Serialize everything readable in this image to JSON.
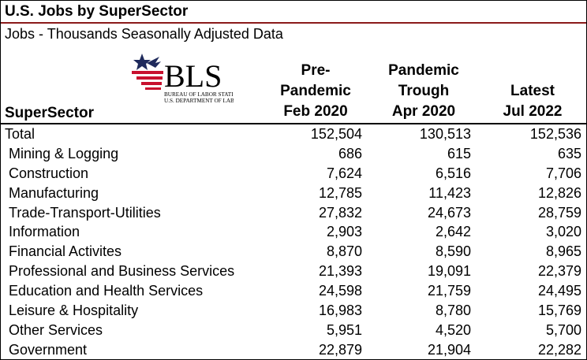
{
  "title": "U.S. Jobs by SuperSector",
  "subtitle": "Jobs - Thousands Seasonally Adjusted Data",
  "logo": {
    "text": "BLS",
    "line1": "BUREAU OF LABOR STATISTICS",
    "line2": "U.S. DEPARTMENT OF LABOR",
    "colors": {
      "red": "#c8102e",
      "navy": "#1f2a5c",
      "text": "#000000"
    }
  },
  "chart_data": {
    "type": "table",
    "columns": {
      "sector": "SuperSector",
      "pre": [
        "Pre-",
        "Pandemic",
        "Feb 2020"
      ],
      "trough": [
        "Pandemic",
        "Trough",
        "Apr 2020"
      ],
      "latest": [
        "Latest",
        "Jul 2022"
      ]
    },
    "rows": [
      {
        "sector": "Total",
        "pre": "152,504",
        "trough": "130,513",
        "latest": "152,536"
      },
      {
        "sector": "Mining & Logging",
        "pre": "686",
        "trough": "615",
        "latest": "635"
      },
      {
        "sector": "Construction",
        "pre": "7,624",
        "trough": "6,516",
        "latest": "7,706"
      },
      {
        "sector": "Manufacturing",
        "pre": "12,785",
        "trough": "11,423",
        "latest": "12,826"
      },
      {
        "sector": "Trade-Transport-Utilities",
        "pre": "27,832",
        "trough": "24,673",
        "latest": "28,759"
      },
      {
        "sector": "Information",
        "pre": "2,903",
        "trough": "2,642",
        "latest": "3,020"
      },
      {
        "sector": "Financial Activites",
        "pre": "8,870",
        "trough": "8,590",
        "latest": "8,965"
      },
      {
        "sector": "Professional and Business Services",
        "pre": "21,393",
        "trough": "19,091",
        "latest": "22,379"
      },
      {
        "sector": "Education and Health Services",
        "pre": "24,598",
        "trough": "21,759",
        "latest": "24,495"
      },
      {
        "sector": "Leisure & Hospitality",
        "pre": "16,983",
        "trough": "8,780",
        "latest": "15,769"
      },
      {
        "sector": "Other Services",
        "pre": "5,951",
        "trough": "4,520",
        "latest": "5,700"
      },
      {
        "sector": "Government",
        "pre": "22,879",
        "trough": "21,904",
        "latest": "22,282"
      }
    ]
  }
}
